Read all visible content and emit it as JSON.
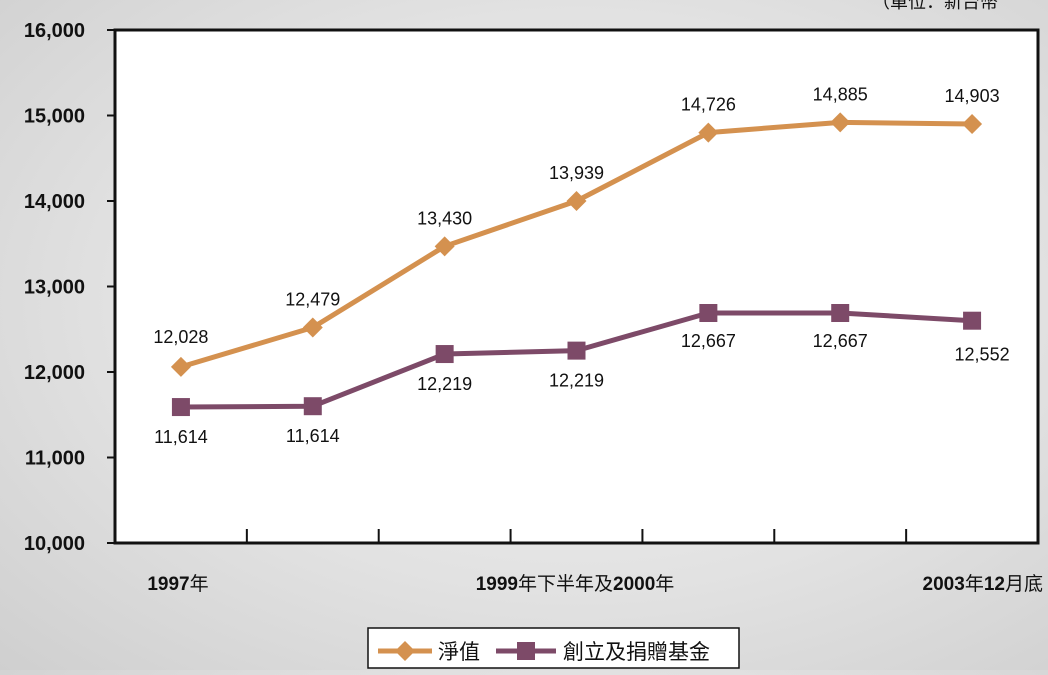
{
  "chart_data": {
    "type": "line",
    "unit_note": "（單位：新台幣",
    "x": [
      "1997年",
      "",
      "",
      "1999年下半年及2000年",
      "",
      "",
      "2003年12月底"
    ],
    "x_tick_labels": [
      {
        "bold": "1997",
        "normal": "年"
      },
      {
        "parts": [
          {
            "t": "1999",
            "b": true
          },
          {
            "t": "年下半年及",
            "b": false
          },
          {
            "t": "2000",
            "b": true
          },
          {
            "t": "年",
            "b": false
          }
        ]
      },
      {
        "parts": [
          {
            "t": "2003",
            "b": true
          },
          {
            "t": "年",
            "b": false
          },
          {
            "t": "12",
            "b": true
          },
          {
            "t": "月底",
            "b": false
          }
        ]
      }
    ],
    "ylim": [
      10000,
      16000
    ],
    "yticks": [
      "10,000",
      "11,000",
      "12,000",
      "13,000",
      "14,000",
      "15,000",
      "16,000"
    ],
    "series": [
      {
        "name": "淨值",
        "color": "#d4914f",
        "marker": "diamond",
        "values": [
          12060,
          12520,
          13470,
          14000,
          14800,
          14920,
          14900
        ],
        "labels": [
          "12,028",
          "12,479",
          "13,430",
          "13,939",
          "14,726",
          "14,885",
          "14,903"
        ]
      },
      {
        "name": "創立及捐贈基金",
        "color": "#7d4a68",
        "marker": "square",
        "values": [
          11590,
          11600,
          12210,
          12250,
          12690,
          12690,
          12600
        ],
        "labels": [
          "11,614",
          "11,614",
          "12,219",
          "12,219",
          "12,667",
          "12,667",
          "12,552"
        ]
      }
    ],
    "legend_position": "bottom-center",
    "grid": false
  }
}
